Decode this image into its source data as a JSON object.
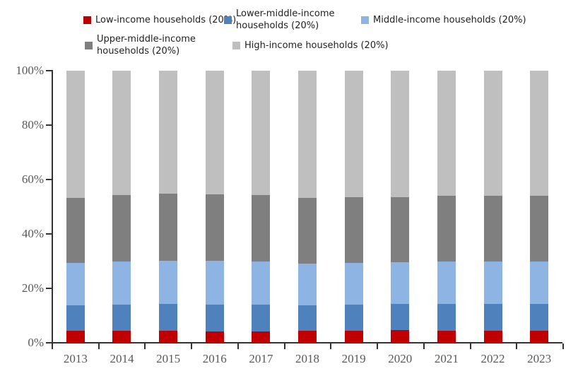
{
  "legend": {
    "items": [
      {
        "label": "Low-income households (20%)",
        "color": "#C00000"
      },
      {
        "label": "Lower-middle-income households (20%)",
        "color": "#4F81BD"
      },
      {
        "label": "Middle-income households (20%)",
        "color": "#8DB4E2"
      },
      {
        "label": "Upper-middle-income households (20%)",
        "color": "#7F7F7F"
      },
      {
        "label": "High-income households (20%)",
        "color": "#BFBFBF"
      }
    ]
  },
  "axes": {
    "y_tick_labels": [
      "0%",
      "20%",
      "40%",
      "60%",
      "80%",
      "100%"
    ],
    "x_tick_labels": [
      "2013",
      "2014",
      "2015",
      "2016",
      "2017",
      "2018",
      "2019",
      "2020",
      "2021",
      "2022",
      "2023"
    ]
  },
  "chart_data": {
    "type": "bar",
    "stacked": true,
    "title": "",
    "xlabel": "",
    "ylabel": "",
    "categories": [
      "2013",
      "2014",
      "2015",
      "2016",
      "2017",
      "2018",
      "2019",
      "2020",
      "2021",
      "2022",
      "2023"
    ],
    "series": [
      {
        "name": "Low-income households (20%)",
        "color": "#C00000",
        "values": [
          4.3,
          4.3,
          4.3,
          4.2,
          4.2,
          4.3,
          4.5,
          4.6,
          4.5,
          4.4,
          4.4
        ]
      },
      {
        "name": "Lower-middle-income households (20%)",
        "color": "#4F81BD",
        "values": [
          9.5,
          9.8,
          9.9,
          9.9,
          9.8,
          9.5,
          9.6,
          9.6,
          9.9,
          9.8,
          9.9
        ]
      },
      {
        "name": "Middle-income households (20%)",
        "color": "#8DB4E2",
        "values": [
          15.5,
          15.9,
          16.0,
          16.0,
          15.9,
          15.3,
          15.3,
          15.3,
          15.6,
          15.6,
          15.5
        ]
      },
      {
        "name": "Upper-middle-income households (20%)",
        "color": "#7F7F7F",
        "values": [
          24.0,
          24.2,
          24.5,
          24.5,
          24.3,
          24.1,
          24.0,
          23.9,
          24.1,
          24.2,
          24.3
        ]
      },
      {
        "name": "High-income households (20%)",
        "color": "#BFBFBF",
        "values": [
          46.7,
          45.8,
          45.3,
          45.4,
          45.8,
          46.8,
          46.6,
          46.6,
          45.9,
          46.0,
          45.9
        ]
      }
    ],
    "ylim": [
      0,
      100
    ],
    "y_unit": "%",
    "grid": false,
    "legend_position": "top"
  }
}
